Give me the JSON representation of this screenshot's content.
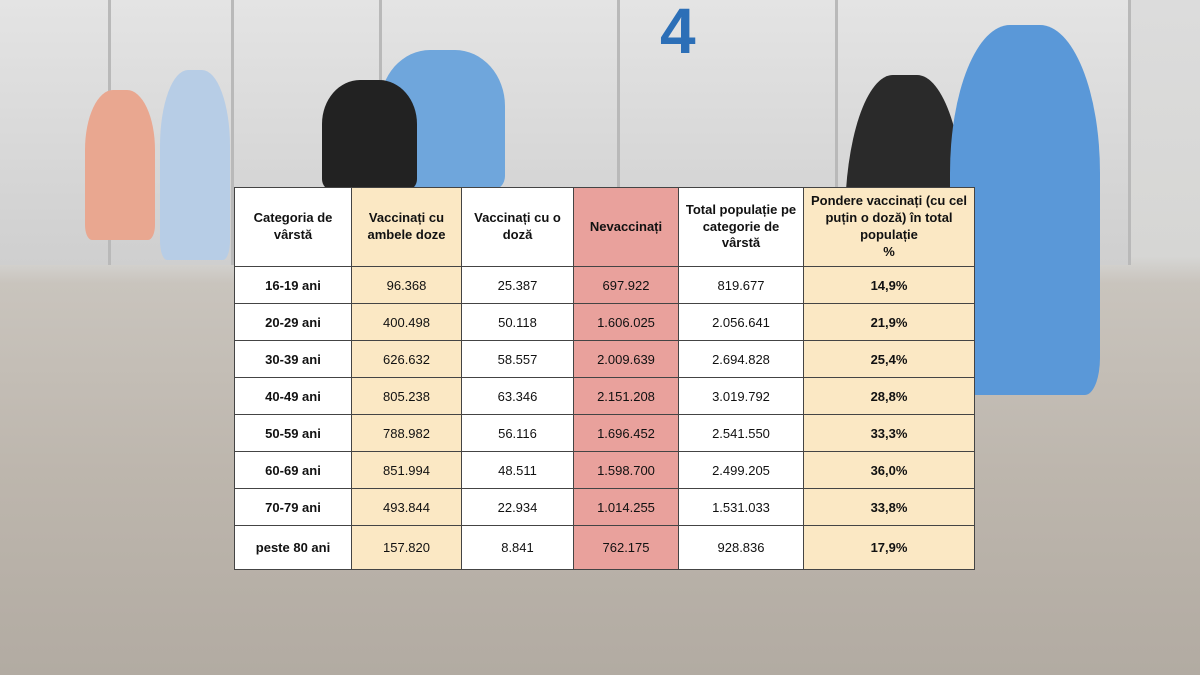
{
  "background_sign": "4",
  "table": {
    "header": [
      "Categoria de vârstă",
      "Vaccinați cu ambele doze",
      "Vaccinați cu o doză",
      "Nevaccinați",
      "Total populație pe categorie de vârstă",
      "Pondere vaccinați (cu cel puțin o doză) în total populație\n%"
    ],
    "rows": [
      [
        "16-19 ani",
        "96.368",
        "25.387",
        "697.922",
        "819.677",
        "14,9%"
      ],
      [
        "20-29 ani",
        "400.498",
        "50.118",
        "1.606.025",
        "2.056.641",
        "21,9%"
      ],
      [
        "30-39 ani",
        "626.632",
        "58.557",
        "2.009.639",
        "2.694.828",
        "25,4%"
      ],
      [
        "40-49 ani",
        "805.238",
        "63.346",
        "2.151.208",
        "3.019.792",
        "28,8%"
      ],
      [
        "50-59 ani",
        "788.982",
        "56.116",
        "1.696.452",
        "2.541.550",
        "33,3%"
      ],
      [
        "60-69 ani",
        "851.994",
        "48.511",
        "1.598.700",
        "2.499.205",
        "36,0%"
      ],
      [
        "70-79 ani",
        "493.844",
        "22.934",
        "1.014.255",
        "1.531.033",
        "33,8%"
      ],
      [
        "peste 80 ani",
        "157.820",
        "8.841",
        "762.175",
        "928.836",
        "17,9%"
      ]
    ]
  }
}
